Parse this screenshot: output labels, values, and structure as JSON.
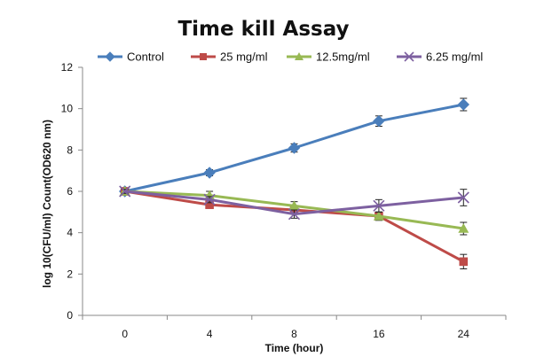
{
  "chart_data": {
    "type": "line",
    "title": "Time kill Assay",
    "xlabel": "Time (hour)",
    "ylabel": "log 10(CFU/ml) Count(OD620 nm)",
    "categories": [
      "0",
      "4",
      "8",
      "16",
      "24"
    ],
    "ylim": [
      0,
      12
    ],
    "yticks": [
      0,
      2,
      4,
      6,
      8,
      10,
      12
    ],
    "grid": false,
    "legend_position": "top",
    "series": [
      {
        "name": "Control",
        "color": "#4a7ebb",
        "marker": "diamond",
        "values": [
          6.0,
          6.9,
          8.1,
          9.4,
          10.2
        ],
        "errors": [
          0.1,
          0.15,
          0.2,
          0.25,
          0.3
        ]
      },
      {
        "name": "25 mg/ml",
        "color": "#be4b48",
        "marker": "square",
        "values": [
          6.0,
          5.35,
          5.1,
          4.8,
          2.6
        ],
        "errors": [
          0.1,
          0.15,
          0.2,
          0.2,
          0.35
        ]
      },
      {
        "name": "12.5mg/ml",
        "color": "#98b954",
        "marker": "triangle",
        "values": [
          6.0,
          5.8,
          5.3,
          4.8,
          4.2
        ],
        "errors": [
          0.1,
          0.2,
          0.2,
          0.2,
          0.3
        ]
      },
      {
        "name": "6.25 mg/ml",
        "color": "#7d60a0",
        "marker": "x",
        "values": [
          6.0,
          5.6,
          4.9,
          5.3,
          5.7
        ],
        "errors": [
          0.1,
          0.15,
          0.2,
          0.3,
          0.4
        ]
      }
    ]
  }
}
